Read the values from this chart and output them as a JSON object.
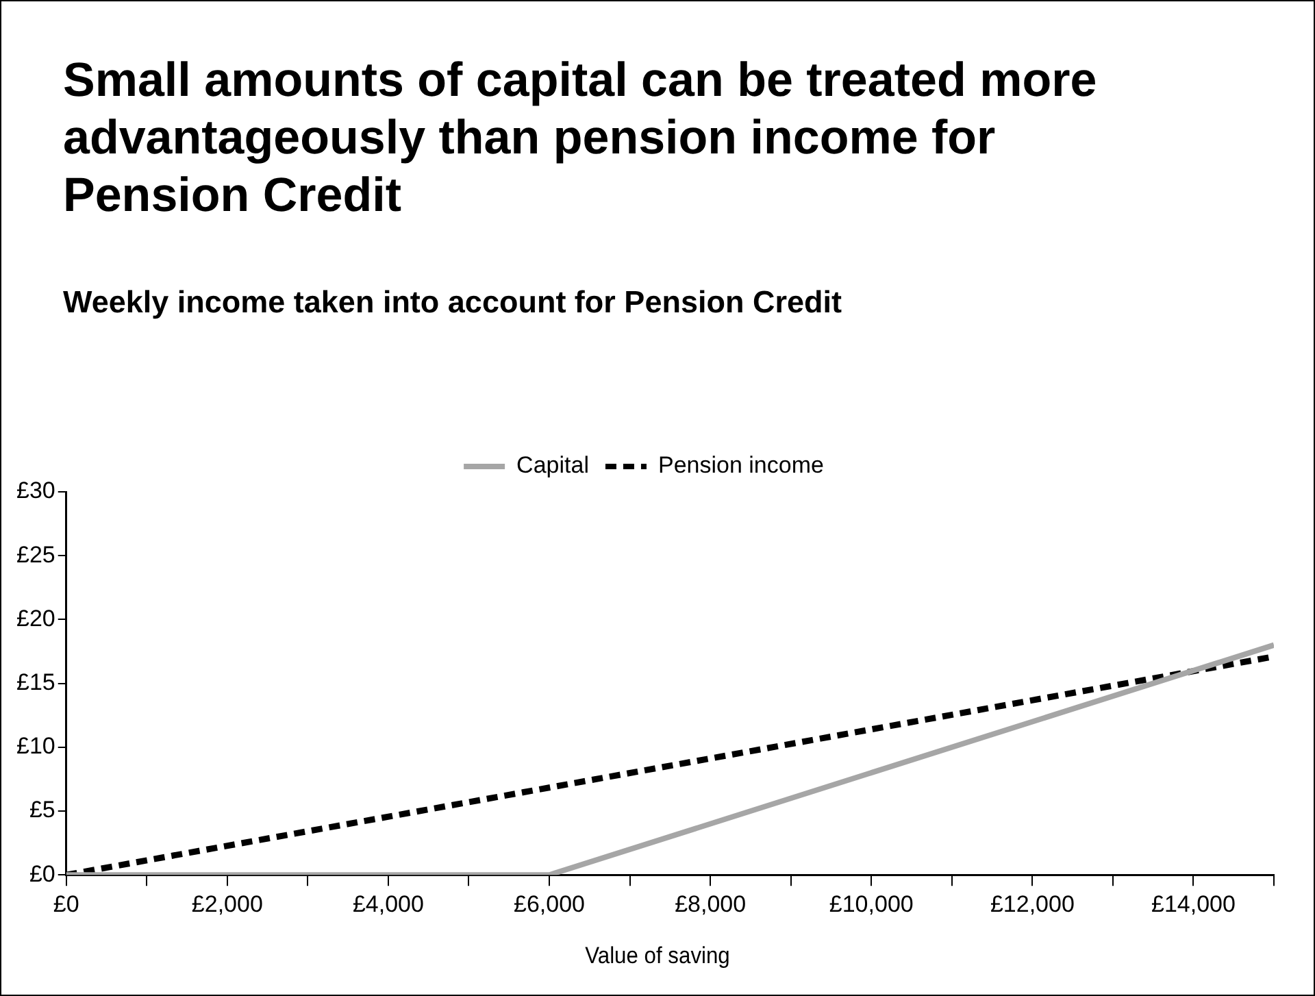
{
  "chart_data": {
    "type": "line",
    "title": "Small amounts of capital can be treated more advantageously than pension income for Pension Credit",
    "subtitle": "Weekly income taken into account for Pension Credit",
    "xlabel": "Value of saving",
    "series": [
      {
        "name": "Capital",
        "color": "#a6a6a6",
        "line_style": "solid",
        "x": [
          0,
          6000,
          15000
        ],
        "values": [
          0,
          0,
          18
        ]
      },
      {
        "name": "Pension income",
        "color": "#000000",
        "line_style": "dashed",
        "x": [
          0,
          15000
        ],
        "values": [
          0,
          17.1
        ]
      }
    ],
    "xlim": [
      0,
      15000
    ],
    "xticks": [
      {
        "value": 0,
        "label": "£0"
      },
      {
        "value": 1000,
        "label": null
      },
      {
        "value": 2000,
        "label": "£2,000"
      },
      {
        "value": 3000,
        "label": null
      },
      {
        "value": 4000,
        "label": "£4,000"
      },
      {
        "value": 5000,
        "label": null
      },
      {
        "value": 6000,
        "label": "£6,000"
      },
      {
        "value": 7000,
        "label": null
      },
      {
        "value": 8000,
        "label": "£8,000"
      },
      {
        "value": 9000,
        "label": null
      },
      {
        "value": 10000,
        "label": "£10,000"
      },
      {
        "value": 11000,
        "label": null
      },
      {
        "value": 12000,
        "label": "£12,000"
      },
      {
        "value": 13000,
        "label": null
      },
      {
        "value": 14000,
        "label": "£14,000"
      },
      {
        "value": 15000,
        "label": null
      }
    ],
    "ylim": [
      0,
      30
    ],
    "yticks": [
      {
        "value": 0,
        "label": "£0"
      },
      {
        "value": 5,
        "label": "£5"
      },
      {
        "value": 10,
        "label": "£10"
      },
      {
        "value": 15,
        "label": "£15"
      },
      {
        "value": 20,
        "label": "£20"
      },
      {
        "value": 25,
        "label": "£25"
      },
      {
        "value": 30,
        "label": "£30"
      }
    ],
    "grid": false,
    "legend": "top",
    "marker": "none"
  }
}
